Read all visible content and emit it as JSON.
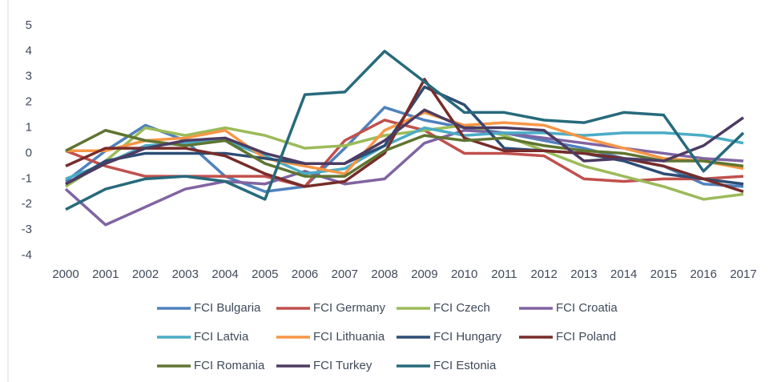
{
  "chart_data": {
    "type": "line",
    "x": [
      2000,
      2001,
      2002,
      2003,
      2004,
      2005,
      2006,
      2007,
      2008,
      2009,
      2010,
      2011,
      2012,
      2013,
      2014,
      2015,
      2016,
      2017
    ],
    "xlim": [
      2000,
      2017
    ],
    "xticks": [
      2000,
      2001,
      2002,
      2003,
      2004,
      2005,
      2006,
      2007,
      2008,
      2009,
      2010,
      2011,
      2012,
      2013,
      2014,
      2015,
      2016,
      2017
    ],
    "ylim": [
      -4,
      5
    ],
    "yticks": [
      -4,
      -3,
      -2,
      -1,
      0,
      1,
      2,
      3,
      4,
      5
    ],
    "grid": false,
    "legend": "bottom",
    "series": [
      {
        "name": "FCI Bulgaria",
        "color": "#4f81bd",
        "values": [
          -1.1,
          0.1,
          1.1,
          0.5,
          -0.9,
          -1.5,
          -1.3,
          0.2,
          1.8,
          1.3,
          1.0,
          0.8,
          0.5,
          0.2,
          -0.2,
          -0.5,
          -1.2,
          -1.3
        ]
      },
      {
        "name": "FCI Germany",
        "color": "#c0504d",
        "values": [
          0.1,
          -0.5,
          -0.9,
          -0.9,
          -0.9,
          -0.9,
          -1.3,
          0.5,
          1.3,
          0.9,
          0.0,
          0.0,
          -0.1,
          -1.0,
          -1.1,
          -1.0,
          -1.0,
          -0.9
        ]
      },
      {
        "name": "FCI Czech",
        "color": "#9bbb59",
        "values": [
          -1.3,
          -0.3,
          1.0,
          0.7,
          1.0,
          0.7,
          0.2,
          0.3,
          0.7,
          0.9,
          1.1,
          0.7,
          0.1,
          -0.5,
          -0.9,
          -1.3,
          -1.8,
          -1.6
        ]
      },
      {
        "name": "FCI Croatia",
        "color": "#8064a2",
        "values": [
          -1.4,
          -2.8,
          -2.1,
          -1.4,
          -1.1,
          -1.2,
          -0.7,
          -1.2,
          -1.0,
          0.4,
          0.9,
          0.8,
          0.6,
          0.4,
          0.2,
          0.0,
          -0.2,
          -0.3
        ]
      },
      {
        "name": "FCI Latvia",
        "color": "#4bacc6",
        "values": [
          -1.0,
          -0.4,
          0.3,
          0.4,
          0.5,
          -0.1,
          -0.8,
          -0.6,
          0.3,
          1.0,
          0.7,
          0.8,
          0.8,
          0.7,
          0.8,
          0.8,
          0.7,
          0.4
        ]
      },
      {
        "name": "FCI Lithuania",
        "color": "#f79646",
        "values": [
          0.1,
          0.1,
          0.5,
          0.6,
          0.9,
          -0.2,
          -0.5,
          -0.8,
          0.9,
          1.6,
          1.1,
          1.2,
          1.1,
          0.6,
          0.2,
          -0.2,
          -0.3,
          -0.6
        ]
      },
      {
        "name": "FCI Hungary",
        "color": "#2c4d75",
        "values": [
          -1.2,
          -0.3,
          0.0,
          0.0,
          0.0,
          -0.2,
          -0.4,
          -0.4,
          0.3,
          2.6,
          1.9,
          0.2,
          0.1,
          0.0,
          -0.3,
          -0.8,
          -1.0,
          -1.2
        ]
      },
      {
        "name": "FCI Poland",
        "color": "#772c2a",
        "values": [
          -0.5,
          0.2,
          0.2,
          0.2,
          -0.1,
          -0.8,
          -1.3,
          -1.1,
          0.0,
          2.9,
          0.6,
          0.1,
          0.1,
          0.0,
          -0.2,
          -0.5,
          -1.0,
          -1.5
        ]
      },
      {
        "name": "FCI Romania",
        "color": "#5f7530",
        "values": [
          0.1,
          0.9,
          0.5,
          0.3,
          0.5,
          -0.4,
          -0.9,
          -0.9,
          0.1,
          0.7,
          0.5,
          0.6,
          0.3,
          0.1,
          0.0,
          -0.3,
          -0.3,
          -0.5
        ]
      },
      {
        "name": "FCI Turkey",
        "color": "#4d3b62",
        "values": [
          -1.2,
          -0.4,
          0.2,
          0.5,
          0.6,
          0.0,
          -0.4,
          -0.4,
          0.5,
          1.7,
          1.0,
          1.0,
          0.9,
          -0.3,
          -0.2,
          -0.3,
          0.3,
          1.4
        ]
      },
      {
        "name": "FCI Estonia",
        "color": "#276a7c",
        "values": [
          -2.2,
          -1.4,
          -1.0,
          -0.9,
          -1.1,
          -1.8,
          2.3,
          2.4,
          4.0,
          2.8,
          1.6,
          1.6,
          1.3,
          1.2,
          1.6,
          1.5,
          -0.7,
          0.8
        ]
      }
    ]
  }
}
